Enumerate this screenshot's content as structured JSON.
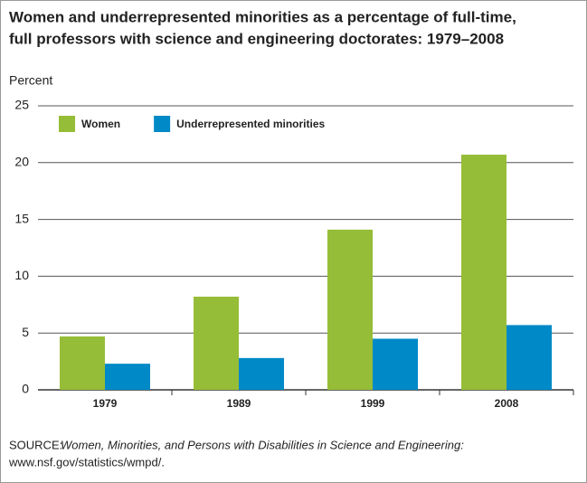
{
  "chart_data": {
    "type": "bar",
    "title": [
      "Women and underrepresented minorities as a percentage of full-time,",
      "full professors with science and engineering doctorates: 1979–2008"
    ],
    "y_label": "Percent",
    "categories": [
      "1979",
      "1989",
      "1999",
      "2008"
    ],
    "series": [
      {
        "name": "Women",
        "color": "#96bd37",
        "values": [
          4.7,
          8.2,
          14.1,
          20.7
        ]
      },
      {
        "name": "Underrepresented minorities",
        "color": "#0089c7",
        "values": [
          2.3,
          2.8,
          4.5,
          5.7
        ]
      }
    ],
    "ylim": [
      0,
      25
    ],
    "yticks": [
      0,
      5,
      10,
      15,
      20,
      25
    ],
    "grid": true,
    "legend": "top-left",
    "source": {
      "label": "SOURCE:",
      "title": "Women, Minorities, and Persons with Disabilities in Science and Engineering:",
      "url": "www.nsf.gov/statistics/wmpd/."
    }
  }
}
